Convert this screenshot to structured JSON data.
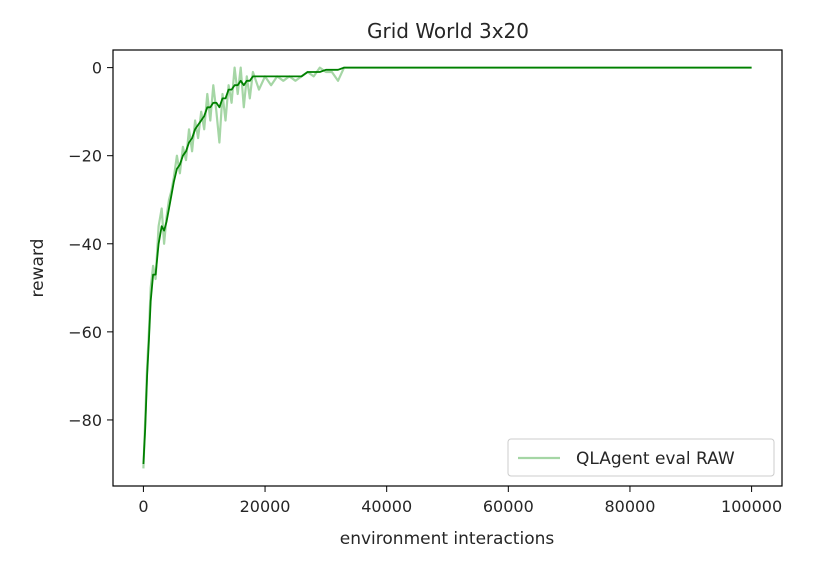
{
  "chart_data": {
    "type": "line",
    "title": "Grid World 3x20",
    "xlabel": "environment interactions",
    "ylabel": "reward",
    "xlim": [
      -5000,
      105000
    ],
    "ylim": [
      -95,
      4
    ],
    "xticks": [
      0,
      20000,
      40000,
      60000,
      80000,
      100000
    ],
    "xtick_labels": [
      "0",
      "20000",
      "40000",
      "60000",
      "80000",
      "100000"
    ],
    "yticks": [
      0,
      -20,
      -40,
      -60,
      -80
    ],
    "ytick_labels": [
      "0",
      "−20",
      "−40",
      "−60",
      "−80"
    ],
    "grid": false,
    "legend": {
      "placement": "lower-right",
      "entries": [
        "QLAgent eval RAW"
      ]
    },
    "series": [
      {
        "name": "QLAgent eval RAW",
        "color": "#7fc47f",
        "opacity": 0.7,
        "x": [
          0,
          300,
          600,
          900,
          1200,
          1600,
          2000,
          2500,
          3000,
          3400,
          3800,
          4200,
          4600,
          5000,
          5500,
          6000,
          6500,
          7000,
          7500,
          8000,
          8500,
          9000,
          9500,
          10000,
          10500,
          11000,
          11500,
          12000,
          12500,
          13000,
          13500,
          14000,
          14500,
          15000,
          15500,
          16000,
          16500,
          17000,
          17500,
          18000,
          19000,
          20000,
          21000,
          22000,
          23000,
          24000,
          25000,
          26000,
          27000,
          28000,
          29000,
          30000,
          31000,
          32000,
          33000,
          35000,
          40000,
          45000,
          50000,
          55000,
          60000,
          65000,
          70000,
          75000,
          80000,
          85000,
          90000,
          95000,
          100000
        ],
        "y": [
          -91,
          -80,
          -68,
          -60,
          -50,
          -45,
          -48,
          -36,
          -32,
          -40,
          -34,
          -30,
          -28,
          -25,
          -20,
          -24,
          -18,
          -21,
          -14,
          -19,
          -12,
          -16,
          -10,
          -14,
          -6,
          -12,
          -4,
          -10,
          -17,
          -6,
          -12,
          -4,
          -8,
          0,
          -6,
          0,
          -9,
          -2,
          -7,
          -1,
          -5,
          -2,
          -4,
          -2,
          -3,
          -2,
          -3,
          -2,
          -1,
          -2,
          0,
          -1,
          -1,
          -3,
          0,
          0,
          0,
          0,
          0,
          0,
          0,
          0,
          0,
          0,
          0,
          0,
          0,
          0,
          0
        ]
      },
      {
        "color": "#008000",
        "opacity": 1,
        "x": [
          0,
          300,
          600,
          900,
          1200,
          1600,
          2000,
          2500,
          3000,
          3400,
          3800,
          4200,
          4600,
          5000,
          5500,
          6000,
          6500,
          7000,
          7500,
          8000,
          8500,
          9000,
          9500,
          10000,
          10500,
          11000,
          11500,
          12000,
          12500,
          13000,
          13500,
          14000,
          14500,
          15000,
          15500,
          16000,
          16500,
          17000,
          17500,
          18000,
          19000,
          20000,
          21000,
          22000,
          23000,
          24000,
          25000,
          26000,
          27000,
          28000,
          29000,
          30000,
          31000,
          32000,
          33000,
          35000,
          40000,
          45000,
          50000,
          55000,
          60000,
          65000,
          70000,
          75000,
          80000,
          85000,
          90000,
          95000,
          100000
        ],
        "y": [
          -90,
          -82,
          -70,
          -62,
          -53,
          -47,
          -47,
          -40,
          -36,
          -37,
          -35,
          -32,
          -29,
          -26,
          -23,
          -22,
          -20,
          -19,
          -17,
          -16,
          -14,
          -13,
          -12,
          -11,
          -9,
          -9,
          -8,
          -8,
          -9,
          -7,
          -7,
          -5,
          -5,
          -4,
          -4,
          -3,
          -4,
          -3,
          -3,
          -2,
          -2,
          -2,
          -2,
          -2,
          -2,
          -2,
          -2,
          -2,
          -1,
          -1,
          -1,
          -0.5,
          -0.5,
          -0.5,
          0,
          0,
          0,
          0,
          0,
          0,
          0,
          0,
          0,
          0,
          0,
          0,
          0,
          0,
          0
        ]
      }
    ]
  }
}
